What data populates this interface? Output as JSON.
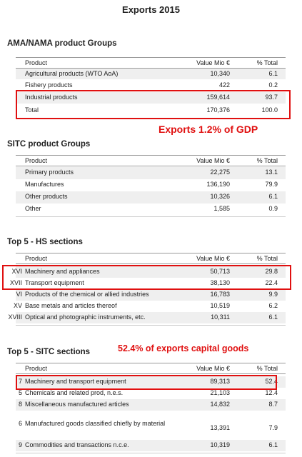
{
  "title": "Exports 2015",
  "sections": [
    {
      "title": "AMA/NAMA product Groups",
      "columns": [
        "Product",
        "Value Mio €",
        "% Total"
      ],
      "rows": [
        [
          "Agricultural products (WTO AoA)",
          "10,340",
          "6.1"
        ],
        [
          "Fishery products",
          "422",
          "0.2"
        ],
        [
          "Industrial products",
          "159,614",
          "93.7"
        ],
        [
          "Total",
          "170,376",
          "100.0"
        ]
      ]
    },
    {
      "title": "SITC product Groups",
      "columns": [
        "Product",
        "Value Mio €",
        "% Total"
      ],
      "rows": [
        [
          "Primary products",
          "22,275",
          "13.1"
        ],
        [
          "Manufactures",
          "136,190",
          "79.9"
        ],
        [
          "Other products",
          "10,326",
          "6.1"
        ],
        [
          "Other",
          "1,585",
          "0.9"
        ]
      ]
    },
    {
      "title": "Top 5  - HS sections",
      "columns": [
        "Product",
        "Value Mio €",
        "% Total"
      ],
      "rows": [
        [
          "XVI",
          "Machinery and appliances",
          "50,713",
          "29.8"
        ],
        [
          "XVII",
          "Transport equipment",
          "38,130",
          "22.4"
        ],
        [
          "VI",
          "Products of the chemical or allied industries",
          "16,783",
          "9.9"
        ],
        [
          "XV",
          "Base metals and articles thereof",
          "10,519",
          "6.2"
        ],
        [
          "XVIII",
          "Optical and photographic instruments, etc.",
          "10,311",
          "6.1"
        ]
      ]
    },
    {
      "title": "Top 5  - SITC sections",
      "columns": [
        "Product",
        "Value Mio €",
        "% Total"
      ],
      "rows": [
        [
          "7",
          "Machinery and transport equipment",
          "89,313",
          "52.4"
        ],
        [
          "5",
          "Chemicals and related prod, n.e.s.",
          "21,103",
          "12.4"
        ],
        [
          "8",
          "Miscellaneous manufactured articles",
          "14,832",
          "8.7"
        ],
        [
          "6",
          "Manufactured goods classified chiefly by material",
          "13,391",
          "7.9"
        ],
        [
          "9",
          "Commodities and transactions n.c.e.",
          "10,319",
          "6.1"
        ]
      ]
    }
  ],
  "annotations": [
    "Exports 1.2% of GDP",
    "52.4% of exports capital goods"
  ]
}
